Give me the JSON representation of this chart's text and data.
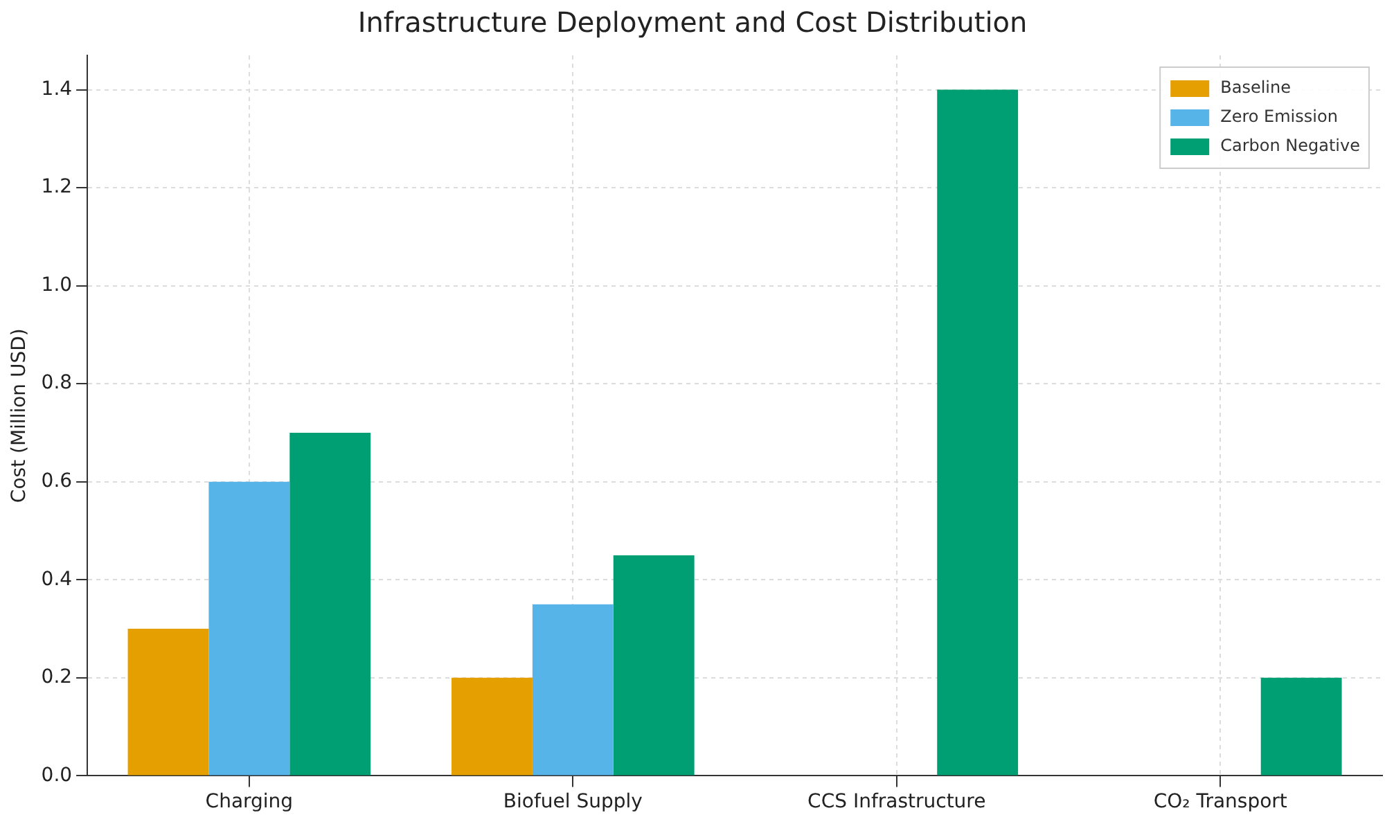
{
  "chart_data": {
    "type": "bar",
    "title": "Infrastructure Deployment and Cost Distribution",
    "ylabel": "Cost (Million USD)",
    "categories": [
      "Charging",
      "Biofuel Supply",
      "CCS Infrastructure",
      "CO₂ Transport"
    ],
    "series": [
      {
        "name": "Baseline",
        "color": "#e69f00",
        "values": [
          0.3,
          0.2,
          0,
          0
        ]
      },
      {
        "name": "Zero Emission",
        "color": "#56b4e9",
        "values": [
          0.6,
          0.35,
          0,
          0
        ]
      },
      {
        "name": "Carbon Negative",
        "color": "#009e73",
        "values": [
          0.7,
          0.45,
          1.4,
          0.2
        ]
      }
    ],
    "ylim": [
      0,
      1.47
    ],
    "yticks": [
      {
        "value": 0,
        "label": "0.0"
      },
      {
        "value": 0.2,
        "label": "0.2"
      },
      {
        "value": 0.4,
        "label": "0.4"
      },
      {
        "value": 0.6,
        "label": "0.6"
      },
      {
        "value": 0.8,
        "label": "0.8"
      },
      {
        "value": 1.0,
        "label": "1.0"
      },
      {
        "value": 1.2,
        "label": "1.2"
      },
      {
        "value": 1.4,
        "label": "1.4"
      }
    ],
    "grid": true,
    "legend": "top right"
  }
}
